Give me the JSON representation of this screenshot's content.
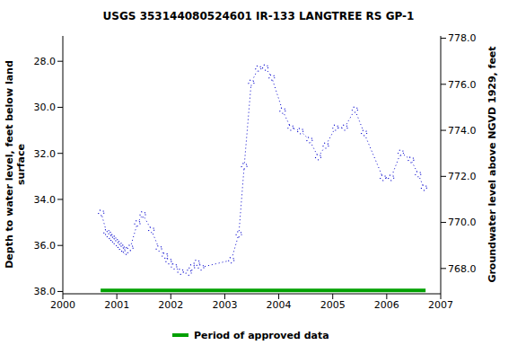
{
  "chart_data": {
    "type": "line",
    "title": "USGS 353144080524601 IR-133 LANGTREE RS GP-1",
    "ylabel": "Depth to water level, feet below land surface",
    "y2label": "Groundwater level above NGVD 1929, feet",
    "xlim": [
      2000,
      2007
    ],
    "xticks": [
      2000,
      2001,
      2002,
      2003,
      2004,
      2005,
      2006,
      2007
    ],
    "ylim": [
      26.9,
      38.1
    ],
    "yticks": [
      {
        "value": 28,
        "label": "28.0"
      },
      {
        "value": 30,
        "label": "30.0"
      },
      {
        "value": 32,
        "label": "32.0"
      },
      {
        "value": 34,
        "label": "34.0"
      },
      {
        "value": 36,
        "label": "36.0"
      },
      {
        "value": 38,
        "label": "38.0"
      }
    ],
    "y2lim": [
      766.9,
      778.1
    ],
    "y2ticks": [
      {
        "value": 768,
        "label": "768.0"
      },
      {
        "value": 770,
        "label": "770.0"
      },
      {
        "value": 772,
        "label": "772.0"
      },
      {
        "value": 774,
        "label": "774.0"
      },
      {
        "value": 776,
        "label": "776.0"
      },
      {
        "value": 778,
        "label": "778.0"
      }
    ],
    "grid": false,
    "legend": "bottom",
    "series": [
      {
        "color": "#0000cc",
        "marker": "circle",
        "line_style": "dotted",
        "x": [
          2000.71,
          2000.81,
          2000.84,
          2000.87,
          2000.91,
          2000.94,
          2000.97,
          2001.0,
          2001.04,
          2001.07,
          2001.1,
          2001.14,
          2001.17,
          2001.2,
          2001.25,
          2001.38,
          2001.48,
          2001.64,
          2001.78,
          2001.89,
          2001.96,
          2002.06,
          2002.18,
          2002.33,
          2002.39,
          2002.48,
          2002.56,
          2003.12,
          2003.26,
          2003.36,
          2003.49,
          2003.62,
          2003.75,
          2003.87,
          2004.07,
          2004.22,
          2004.4,
          2004.57,
          2004.73,
          2004.87,
          2005.05,
          2005.22,
          2005.41,
          2005.58,
          2005.93,
          2006.08,
          2006.26,
          2006.45,
          2006.58,
          2006.69
        ],
        "values": [
          34.58,
          35.43,
          35.5,
          35.6,
          35.67,
          35.75,
          35.82,
          35.9,
          35.98,
          36.06,
          36.14,
          36.22,
          36.27,
          36.2,
          36.1,
          35.04,
          34.65,
          35.32,
          36.13,
          36.44,
          36.68,
          36.91,
          37.14,
          37.18,
          36.95,
          36.75,
          36.95,
          36.64,
          35.51,
          32.55,
          28.93,
          28.31,
          28.27,
          28.7,
          30.14,
          30.88,
          31.03,
          31.42,
          32.16,
          31.66,
          30.88,
          30.88,
          30.1,
          31.11,
          33.06,
          33.06,
          31.97,
          32.28,
          32.9,
          33.49
        ]
      },
      {
        "name": "Period of approved data",
        "color": "#00a000",
        "marker": "none",
        "line_style": "solid",
        "x": [
          2000.7,
          2006.72
        ],
        "values": [
          37.95,
          37.95
        ]
      }
    ]
  }
}
